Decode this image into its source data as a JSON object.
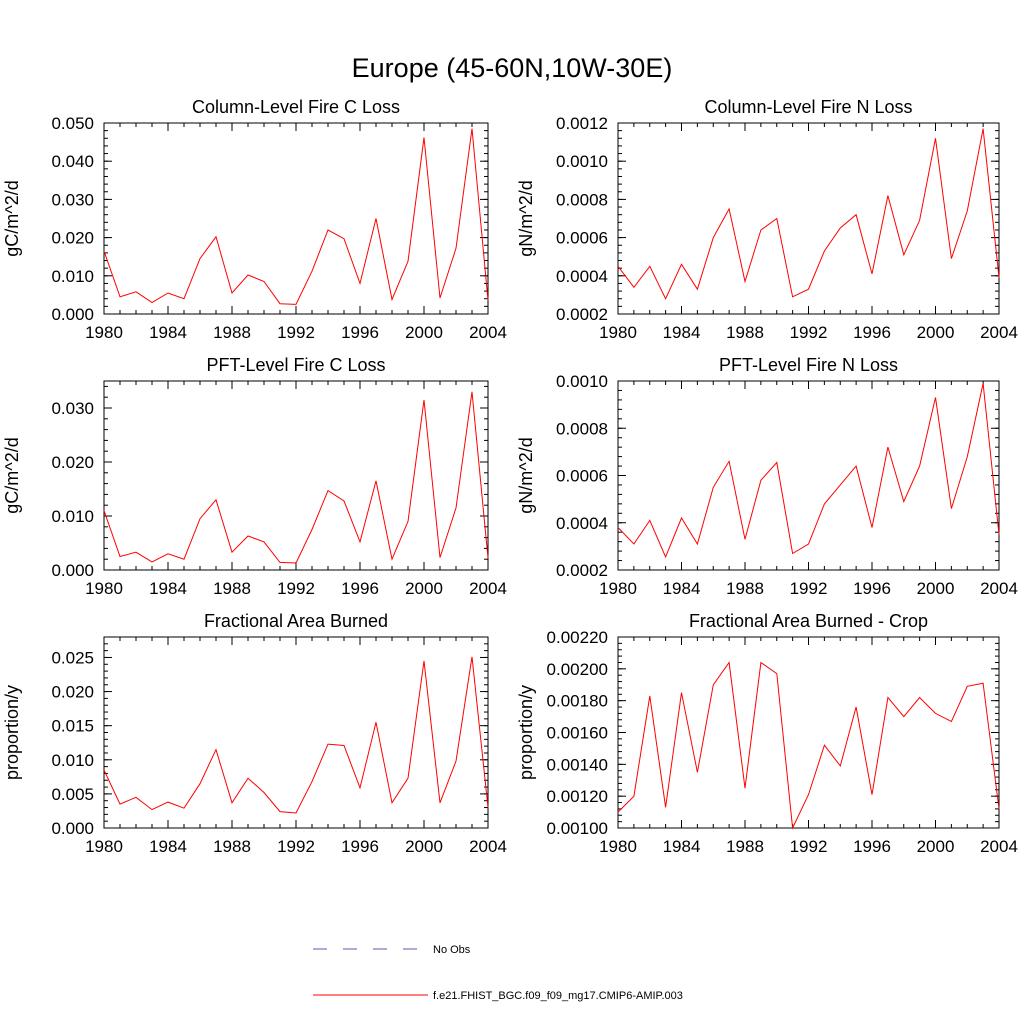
{
  "title": "Europe (45-60N,10W-30E)",
  "legend": {
    "obs_label": "No Obs",
    "obs_color": "#5a5ab4",
    "model_label": "f.e21.FHIST_BGC.f09_f09_mg17.CMIP6-AMIP.003",
    "model_color": "#ff0000"
  },
  "chart_data": [
    {
      "type": "line",
      "title": "Column-Level Fire C Loss",
      "ylabel": "gC/m^2/d",
      "xlim": [
        1980,
        2004
      ],
      "ylim": [
        0,
        0.05
      ],
      "xticks": [
        "1980",
        "1984",
        "1988",
        "1992",
        "1996",
        "2000",
        "2004"
      ],
      "yticks": [
        "0.000",
        "0.010",
        "0.020",
        "0.030",
        "0.040",
        "0.050"
      ],
      "x": [
        1980,
        1981,
        1982,
        1983,
        1984,
        1985,
        1986,
        1987,
        1988,
        1989,
        1990,
        1991,
        1992,
        1993,
        1994,
        1995,
        1996,
        1997,
        1998,
        1999,
        2000,
        2001,
        2002,
        2003,
        2004
      ],
      "values": [
        0.0165,
        0.0045,
        0.0058,
        0.003,
        0.0055,
        0.004,
        0.0145,
        0.0202,
        0.0055,
        0.0102,
        0.0085,
        0.0027,
        0.0025,
        0.0112,
        0.022,
        0.0197,
        0.008,
        0.025,
        0.0038,
        0.0138,
        0.0462,
        0.0042,
        0.0172,
        0.0485,
        0.0035
      ]
    },
    {
      "type": "line",
      "title": "Column-Level Fire N Loss",
      "ylabel": "gN/m^2/d",
      "xlim": [
        1980,
        2004
      ],
      "ylim": [
        0.0002,
        0.0012
      ],
      "xticks": [
        "1980",
        "1984",
        "1988",
        "1992",
        "1996",
        "2000",
        "2004"
      ],
      "yticks": [
        "0.0002",
        "0.0004",
        "0.0006",
        "0.0008",
        "0.0010",
        "0.0012"
      ],
      "x": [
        1980,
        1981,
        1982,
        1983,
        1984,
        1985,
        1986,
        1987,
        1988,
        1989,
        1990,
        1991,
        1992,
        1993,
        1994,
        1995,
        1996,
        1997,
        1998,
        1999,
        2000,
        2001,
        2002,
        2003,
        2004
      ],
      "values": [
        0.00045,
        0.00034,
        0.00045,
        0.00028,
        0.00046,
        0.00033,
        0.0006,
        0.00075,
        0.00037,
        0.00064,
        0.0007,
        0.00029,
        0.00033,
        0.00053,
        0.00065,
        0.00072,
        0.00041,
        0.00082,
        0.00051,
        0.00069,
        0.00112,
        0.00049,
        0.00074,
        0.00117,
        0.00039
      ]
    },
    {
      "type": "line",
      "title": "PFT-Level Fire C Loss",
      "ylabel": "gC/m^2/d",
      "xlim": [
        1980,
        2004
      ],
      "ylim": [
        0,
        0.035
      ],
      "xticks": [
        "1980",
        "1984",
        "1988",
        "1992",
        "1996",
        "2000",
        "2004"
      ],
      "yticks": [
        "0.000",
        "0.010",
        "0.020",
        "0.030"
      ],
      "ytick_values": [
        0,
        0.01,
        0.02,
        0.03
      ],
      "x": [
        1980,
        1981,
        1982,
        1983,
        1984,
        1985,
        1986,
        1987,
        1988,
        1989,
        1990,
        1991,
        1992,
        1993,
        1994,
        1995,
        1996,
        1997,
        1998,
        1999,
        2000,
        2001,
        2002,
        2003,
        2004
      ],
      "values": [
        0.011,
        0.0025,
        0.0033,
        0.0015,
        0.003,
        0.002,
        0.0095,
        0.013,
        0.0033,
        0.0063,
        0.0052,
        0.0014,
        0.0013,
        0.0075,
        0.0147,
        0.0128,
        0.0052,
        0.0165,
        0.002,
        0.009,
        0.0315,
        0.0023,
        0.0115,
        0.033,
        0.0022
      ]
    },
    {
      "type": "line",
      "title": "PFT-Level Fire N Loss",
      "ylabel": "gN/m^2/d",
      "xlim": [
        1980,
        2004
      ],
      "ylim": [
        0.0002,
        0.001
      ],
      "xticks": [
        "1980",
        "1984",
        "1988",
        "1992",
        "1996",
        "2000",
        "2004"
      ],
      "yticks": [
        "0.0002",
        "0.0004",
        "0.0006",
        "0.0008",
        "0.0010"
      ],
      "x": [
        1980,
        1981,
        1982,
        1983,
        1984,
        1985,
        1986,
        1987,
        1988,
        1989,
        1990,
        1991,
        1992,
        1993,
        1994,
        1995,
        1996,
        1997,
        1998,
        1999,
        2000,
        2001,
        2002,
        2003,
        2004
      ],
      "values": [
        0.00038,
        0.00031,
        0.00041,
        0.000255,
        0.00042,
        0.00031,
        0.00055,
        0.00066,
        0.00033,
        0.00058,
        0.000655,
        0.00027,
        0.00031,
        0.00048,
        0.00056,
        0.00064,
        0.00038,
        0.00072,
        0.00049,
        0.00064,
        0.00093,
        0.00046,
        0.00068,
        0.00099,
        0.00035
      ]
    },
    {
      "type": "line",
      "title": "Fractional Area Burned",
      "ylabel": "proportion/y",
      "xlim": [
        1980,
        2004
      ],
      "ylim": [
        0,
        0.028
      ],
      "xticks": [
        "1980",
        "1984",
        "1988",
        "1992",
        "1996",
        "2000",
        "2004"
      ],
      "yticks": [
        "0.000",
        "0.005",
        "0.010",
        "0.015",
        "0.020",
        "0.025"
      ],
      "x": [
        1980,
        1981,
        1982,
        1983,
        1984,
        1985,
        1986,
        1987,
        1988,
        1989,
        1990,
        1991,
        1992,
        1993,
        1994,
        1995,
        1996,
        1997,
        1998,
        1999,
        2000,
        2001,
        2002,
        2003,
        2004
      ],
      "values": [
        0.0085,
        0.0035,
        0.0045,
        0.0027,
        0.0038,
        0.0029,
        0.0065,
        0.0115,
        0.0037,
        0.0073,
        0.0052,
        0.0024,
        0.0022,
        0.0068,
        0.0123,
        0.0121,
        0.0059,
        0.0155,
        0.0037,
        0.0073,
        0.0245,
        0.0037,
        0.0098,
        0.0251,
        0.003
      ]
    },
    {
      "type": "line",
      "title": "Fractional Area Burned - Crop",
      "ylabel": "proportion/y",
      "xlim": [
        1980,
        2004
      ],
      "ylim": [
        0.001,
        0.0022
      ],
      "xticks": [
        "1980",
        "1984",
        "1988",
        "1992",
        "1996",
        "2000",
        "2004"
      ],
      "yticks": [
        "0.00100",
        "0.00120",
        "0.00140",
        "0.00160",
        "0.00180",
        "0.00200",
        "0.00220"
      ],
      "x": [
        1980,
        1981,
        1982,
        1983,
        1984,
        1985,
        1986,
        1987,
        1988,
        1989,
        1990,
        1991,
        1992,
        1993,
        1994,
        1995,
        1996,
        1997,
        1998,
        1999,
        2000,
        2001,
        2002,
        2003,
        2004
      ],
      "values": [
        0.0011,
        0.0012,
        0.00183,
        0.00113,
        0.00185,
        0.00135,
        0.0019,
        0.00204,
        0.00125,
        0.00204,
        0.00197,
        0.001,
        0.00121,
        0.00152,
        0.00139,
        0.00176,
        0.00121,
        0.00182,
        0.0017,
        0.00182,
        0.00172,
        0.00167,
        0.00189,
        0.00191,
        0.00112
      ]
    }
  ]
}
